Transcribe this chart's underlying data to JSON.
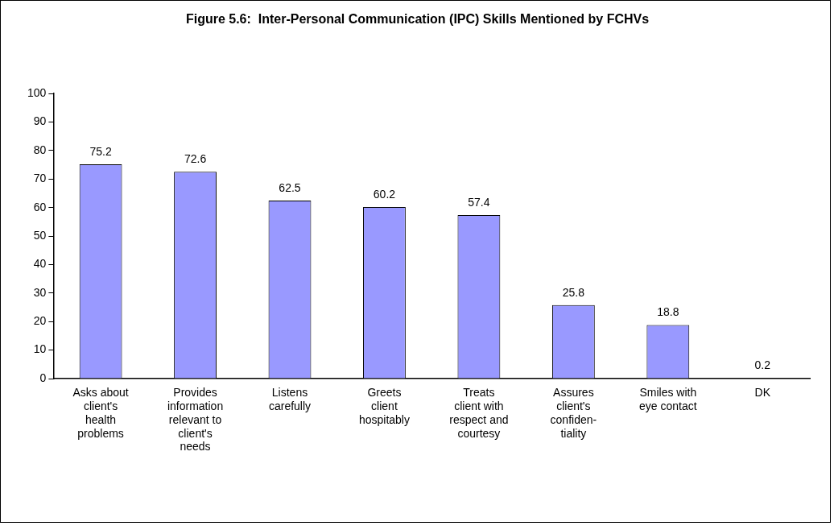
{
  "chart_data": {
    "type": "bar",
    "title": "Figure 5.6:  Inter-Personal Communication (IPC) Skills Mentioned by FCHVs",
    "categories": [
      "Asks about\nclient's\nhealth\nproblems",
      "Provides\ninformation\nrelevant to\nclient's\nneeds",
      "Listens\ncarefully",
      "Greets\nclient\nhospitably",
      "Treats\nclient with\nrespect and\ncourtesy",
      "Assures\nclient's\nconfiden-\ntiality",
      "Smiles with\neye contact",
      "DK"
    ],
    "values": [
      75.2,
      72.6,
      62.5,
      60.2,
      57.4,
      25.8,
      18.8,
      0.2
    ],
    "color": "#9999ff",
    "ylim": [
      0,
      100
    ],
    "yticks": [
      0,
      10,
      20,
      30,
      40,
      50,
      60,
      70,
      80,
      90,
      100
    ],
    "grid": false,
    "legend": false,
    "data_labels": true
  }
}
